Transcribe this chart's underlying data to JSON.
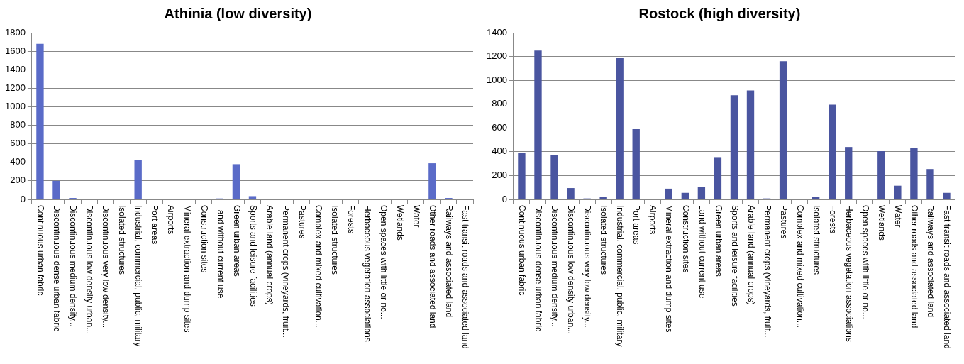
{
  "chart_data": [
    {
      "type": "bar",
      "title": "Athinia (low diversity)",
      "categories": [
        "Continuous urban fabric",
        "Discontinuous dense urban fabric",
        "Discontinuous medium density...",
        "Discontinuous low density urban...",
        "Discontinuous very low density...",
        "Isolated structures",
        "Industrial, commercial, public, military",
        "Port areas",
        "Airports",
        "Mineral extraction and dump sites",
        "Construction sites",
        "Land without current use",
        "Green urban areas",
        "Sports and leisure facilities",
        "Arable land (annual crops)",
        "Permanent crops (vineyards, fruit...",
        "Pastures",
        "Complex and mixed cultivation...",
        "Isolated structures",
        "Forests",
        "Herbaceous vegetation associations",
        "Open spaces with little or no...",
        "Wetlands",
        "Water",
        "Other roads and associated land",
        "Railways and associated land",
        "Fast transit roads and associated land"
      ],
      "values": [
        1680,
        200,
        15,
        4,
        0,
        0,
        425,
        0,
        0,
        0,
        0,
        10,
        380,
        35,
        0,
        0,
        0,
        0,
        0,
        0,
        0,
        0,
        0,
        0,
        390,
        15,
        0
      ],
      "color": "#5a6bc8",
      "ylim": [
        0,
        1800
      ],
      "yticks": [
        0,
        200,
        400,
        600,
        800,
        1000,
        1200,
        1400,
        1600,
        1800
      ],
      "grid": "y"
    },
    {
      "type": "bar",
      "title": "Rostock (high diversity)",
      "categories": [
        "Continuous urban fabric",
        "Discontinuous dense urban fabric",
        "Discontinuous medium density...",
        "Discontinuous low density urban...",
        "Discontinuous very low density...",
        "Isolated structures",
        "Industrial, commercial, public, military",
        "Port areas",
        "Airports",
        "Mineral extraction and dump sites",
        "Construction sites",
        "Land without current use",
        "Green urban areas",
        "Sports and leisure facilities",
        "Arable land (annual crops)",
        "Permanent crops (vineyards, fruit...",
        "Pastures",
        "Complex and mixed cultivation...",
        "Isolated structures",
        "Forests",
        "Herbaceous vegetation associations",
        "Open spaces with little or no...",
        "Wetlands",
        "Water",
        "Other roads and associated land",
        "Railways and associated land",
        "Fast transit roads and associated land"
      ],
      "values": [
        390,
        1250,
        375,
        95,
        8,
        20,
        1185,
        590,
        0,
        90,
        55,
        105,
        355,
        875,
        915,
        8,
        1160,
        0,
        20,
        795,
        440,
        0,
        405,
        115,
        435,
        255,
        55
      ],
      "color": "#4a55a0",
      "ylim": [
        0,
        1400
      ],
      "yticks": [
        0,
        200,
        400,
        600,
        800,
        1000,
        1200,
        1400
      ],
      "grid": "y"
    }
  ]
}
